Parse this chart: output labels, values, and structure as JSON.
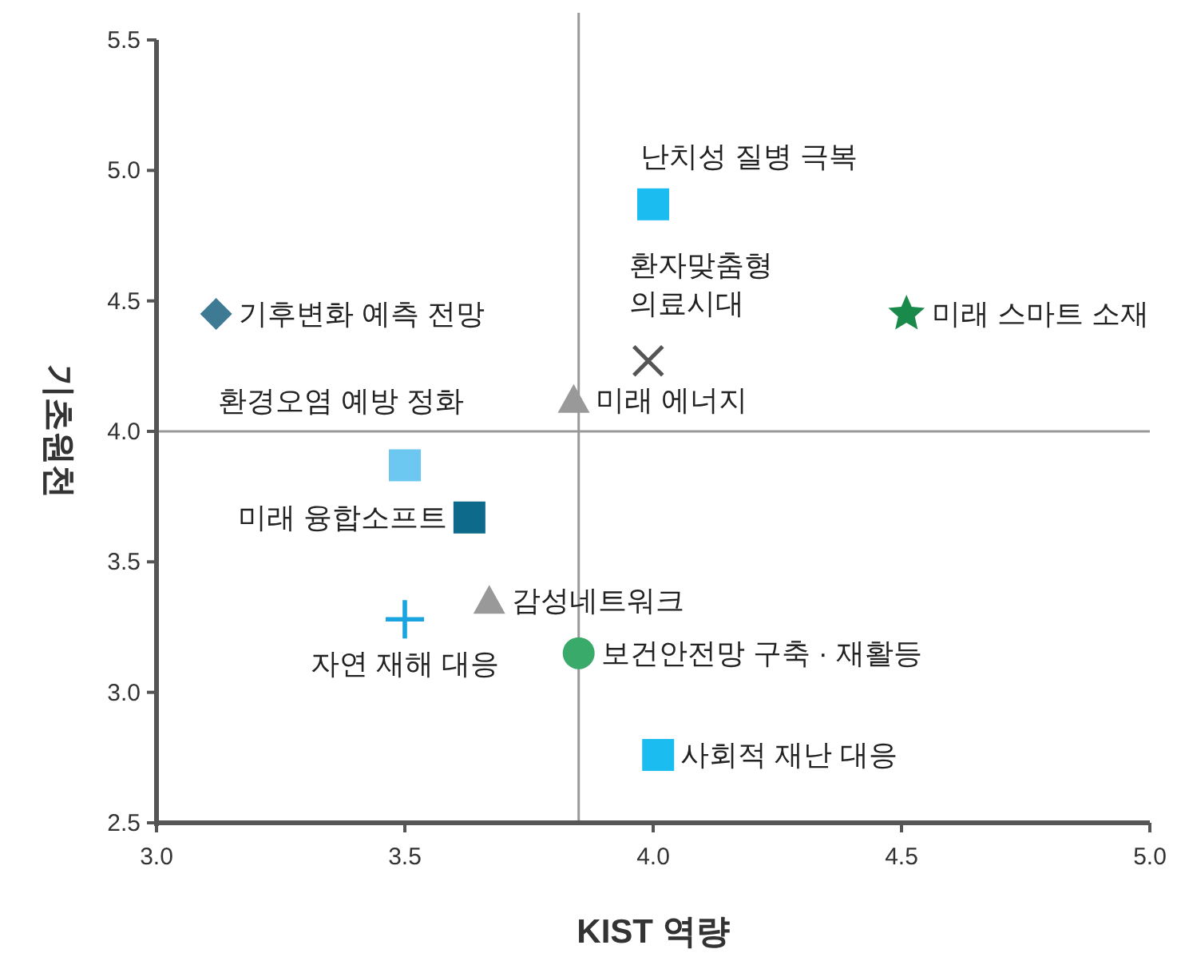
{
  "chart_data": {
    "type": "scatter",
    "xlabel": "KIST 역량",
    "ylabel": "기초원천",
    "xlim": [
      3.0,
      5.0
    ],
    "xticks": [
      {
        "value": 3.0,
        "label": "3.0"
      },
      {
        "value": 3.5,
        "label": "3.5"
      },
      {
        "value": 4.0,
        "label": "4.0"
      },
      {
        "value": 4.5,
        "label": "4.5"
      },
      {
        "value": 5.0,
        "label": "5.0"
      }
    ],
    "ylim": [
      2.5,
      5.5
    ],
    "yticks": [
      {
        "value": 2.5,
        "label": "2.5"
      },
      {
        "value": 3.0,
        "label": "3.0"
      },
      {
        "value": 3.5,
        "label": "3.5"
      },
      {
        "value": 4.0,
        "label": "4.0"
      },
      {
        "value": 4.5,
        "label": "4.5"
      },
      {
        "value": 5.0,
        "label": "5.0"
      },
      {
        "value": 5.5,
        "label": "5.5"
      }
    ],
    "grid": false,
    "ref_lines": [
      {
        "axis": "x",
        "value": 3.85,
        "color": "#999999"
      },
      {
        "axis": "y",
        "value": 4.0,
        "color": "#999999"
      }
    ],
    "series": [
      {
        "name": "기후변화 예측 전망",
        "color": "#3f7a95",
        "marker": "diamond",
        "x": [
          3.12
        ],
        "values": [
          4.45
        ]
      },
      {
        "name": "환경오염 예방 정화",
        "color": "#6cc8f0",
        "marker": "square",
        "x": [
          3.5
        ],
        "values": [
          3.87
        ]
      },
      {
        "name": "미래 융합소프트",
        "color": "#0e6a8a",
        "marker": "square",
        "x": [
          3.63
        ],
        "values": [
          3.67
        ]
      },
      {
        "name": "자연 재해 대응",
        "color": "#1aa5e0",
        "marker": "cross",
        "x": [
          3.5
        ],
        "values": [
          3.28
        ]
      },
      {
        "name": "감성네트워크",
        "color": "#999999",
        "marker": "triangle",
        "x": [
          3.67
        ],
        "values": [
          3.35
        ]
      },
      {
        "name": "미래 에너지",
        "color": "#999999",
        "marker": "triangle",
        "x": [
          3.84
        ],
        "values": [
          4.12
        ]
      },
      {
        "name": "보건안전망 구축 · 재활등",
        "color": "#3aaa6a",
        "marker": "circle",
        "x": [
          3.85
        ],
        "values": [
          3.15
        ]
      },
      {
        "name": "사회적 재난 대응",
        "color": "#1bbdf0",
        "marker": "square",
        "x": [
          4.01
        ],
        "values": [
          2.76
        ]
      },
      {
        "name": "난치성 질병 극복",
        "color": "#1bbdf0",
        "marker": "square",
        "x": [
          4.0
        ],
        "values": [
          4.87
        ]
      },
      {
        "name": "환자맞춤형\n의료시대",
        "color": "#555555",
        "marker": "x",
        "x": [
          3.99
        ],
        "values": [
          4.27
        ]
      },
      {
        "name": "미래 스마트 소재",
        "color": "#1a8a4a",
        "marker": "star",
        "x": [
          4.51
        ],
        "values": [
          4.45
        ]
      }
    ]
  }
}
